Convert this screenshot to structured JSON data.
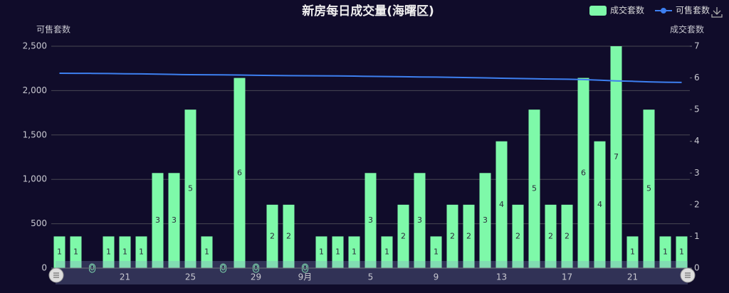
{
  "chart_data": {
    "type": "bar",
    "title": "新房每日成交量(海曙区)",
    "y_label": "可售套数",
    "y2_label": "成交套数",
    "categories": [
      null,
      null,
      null,
      null,
      "21",
      null,
      null,
      null,
      "25",
      null,
      null,
      null,
      "29",
      null,
      null,
      "9月",
      null,
      null,
      null,
      "5",
      null,
      null,
      null,
      "9",
      null,
      null,
      null,
      "13",
      null,
      null,
      null,
      "17",
      null,
      null,
      null,
      "21",
      null,
      null,
      null
    ],
    "series": [
      {
        "name": "成交套数",
        "type": "bar",
        "axis": "y2",
        "color": "#7ef9a9",
        "values": [
          1,
          1,
          0,
          1,
          1,
          1,
          3,
          3,
          5,
          1,
          0,
          6,
          0,
          2,
          2,
          0,
          1,
          1,
          1,
          3,
          1,
          2,
          3,
          1,
          2,
          2,
          3,
          4,
          2,
          5,
          2,
          2,
          6,
          4,
          7,
          1,
          5,
          1,
          1
        ]
      },
      {
        "name": "可售套数",
        "type": "line",
        "color": "#3d7ff0",
        "values": [
          2196,
          2195,
          2194,
          2193,
          2190,
          2189,
          2185,
          2182,
          2179,
          2178,
          2177,
          2175,
          2172,
          2170,
          2168,
          2167,
          2166,
          2165,
          2163,
          2160,
          2158,
          2156,
          2153,
          2152,
          2149,
          2146,
          2143,
          2139,
          2136,
          2133,
          2130,
          2128,
          2124,
          2117,
          2109,
          2105,
          2098,
          2094,
          2092
        ]
      }
    ],
    "ylim": [
      0,
      2500
    ],
    "yticks": [
      0,
      500,
      {
        "value": 1000,
        "label": "1,000"
      },
      {
        "value": 1500,
        "label": "1,500"
      },
      {
        "value": 2000,
        "label": "2,000"
      },
      {
        "value": 2500,
        "label": "2,500"
      }
    ],
    "y2lim": [
      0,
      7
    ],
    "y2ticks": [
      0,
      1,
      2,
      3,
      4,
      5,
      6,
      7
    ],
    "grid": true,
    "legend": "top-right"
  }
}
